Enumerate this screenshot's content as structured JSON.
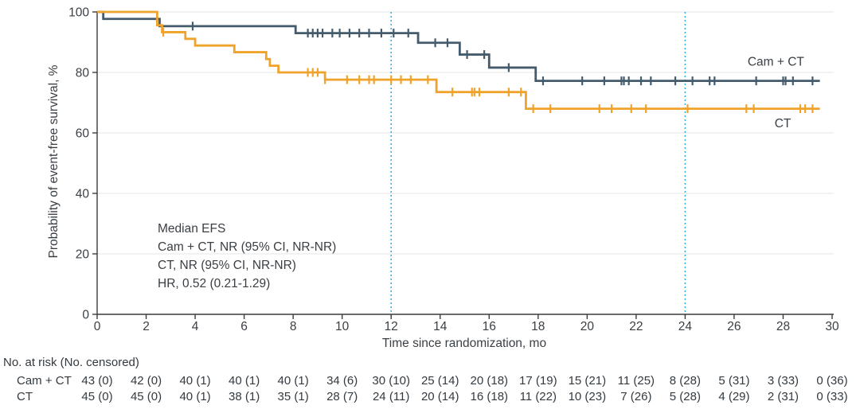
{
  "chart_data": {
    "type": "line",
    "subtype": "kaplan-meier-step",
    "title": "",
    "xlabel": "Time since randomization, mo",
    "ylabel": "Probability of event-free survival, %",
    "xlim": [
      0,
      30
    ],
    "ylim": [
      0,
      100
    ],
    "xticks": [
      0,
      2,
      4,
      6,
      8,
      10,
      12,
      14,
      16,
      18,
      20,
      22,
      24,
      26,
      28,
      30
    ],
    "yticks": [
      0,
      20,
      40,
      60,
      80,
      100
    ],
    "grid": "horizontal",
    "gridline_color": "#ebebeb",
    "axis_color": "#3c3c3c",
    "reference_lines_x": [
      12,
      24
    ],
    "reference_line_color": "#2fb4e8",
    "annotation_lines": [
      "Median EFS",
      "Cam + CT, NR (95% CI, NR-NR)",
      "CT, NR (95% CI, NR-NR)",
      "HR, 0.52 (0.21-1.29)"
    ],
    "series": [
      {
        "name": "Cam + CT",
        "label": "Cam + CT",
        "color": "#445b6c",
        "label_pos": {
          "t": 26.55,
          "s": 82.3
        },
        "end_time": 29.5,
        "steps": [
          [
            0,
            100
          ],
          [
            0.25,
            97.7
          ],
          [
            2.55,
            95.3
          ],
          [
            8.1,
            93.0
          ],
          [
            13.1,
            89.8
          ],
          [
            14.8,
            85.9
          ],
          [
            16.0,
            81.6
          ],
          [
            17.9,
            77.2
          ]
        ],
        "censor_times": [
          3.9,
          8.6,
          8.8,
          9.0,
          9.2,
          9.6,
          9.9,
          10.3,
          10.7,
          11.1,
          11.6,
          12.1,
          12.7,
          13.8,
          14.3,
          15.1,
          15.8,
          16.8,
          18.2,
          19.8,
          20.7,
          21.4,
          21.5,
          21.7,
          22.2,
          22.6,
          23.6,
          24.3,
          25.0,
          25.2,
          26.9,
          28.0,
          28.1,
          28.4,
          29.2
        ]
      },
      {
        "name": "CT",
        "label": "CT",
        "color": "#efa32a",
        "label_pos": {
          "t": 27.65,
          "s": 61.8
        },
        "end_time": 29.5,
        "steps": [
          [
            0,
            100
          ],
          [
            2.45,
            95.6
          ],
          [
            2.65,
            93.3
          ],
          [
            3.6,
            91.1
          ],
          [
            4.0,
            88.9
          ],
          [
            5.6,
            86.7
          ],
          [
            6.9,
            84.4
          ],
          [
            7.05,
            82.2
          ],
          [
            7.4,
            80.0
          ],
          [
            9.3,
            77.6
          ],
          [
            13.85,
            73.5
          ],
          [
            17.5,
            68.0
          ]
        ],
        "censor_times": [
          2.7,
          8.6,
          8.8,
          9.0,
          9.3,
          10.2,
          10.7,
          11.1,
          11.3,
          12.0,
          12.4,
          12.8,
          13.5,
          14.5,
          15.3,
          15.4,
          15.6,
          16.8,
          17.3,
          17.8,
          18.5,
          20.5,
          21.0,
          21.8,
          22.4,
          24.1,
          26.5,
          26.8,
          28.7,
          28.9,
          29.2
        ]
      }
    ]
  },
  "risk_table": {
    "header": "No. at risk (No. censored)",
    "times": [
      0,
      2,
      4,
      6,
      8,
      10,
      12,
      14,
      16,
      18,
      20,
      22,
      24,
      26,
      28,
      30
    ],
    "rows": [
      {
        "label": "Cam + CT",
        "values": [
          "43 (0)",
          "42 (0)",
          "40 (1)",
          "40 (1)",
          "40 (1)",
          "34 (6)",
          "30 (10)",
          "25 (14)",
          "20 (18)",
          "17 (19)",
          "15 (21)",
          "11 (25)",
          "8 (28)",
          "5 (31)",
          "3 (33)",
          "0 (36)"
        ]
      },
      {
        "label": "CT",
        "values": [
          "45 (0)",
          "45 (0)",
          "40 (1)",
          "38 (1)",
          "35 (1)",
          "28 (7)",
          "24 (11)",
          "20 (14)",
          "16 (18)",
          "11 (22)",
          "10 (23)",
          "7 (26)",
          "5 (28)",
          "4 (29)",
          "2 (31)",
          "0 (33)"
        ]
      }
    ]
  }
}
